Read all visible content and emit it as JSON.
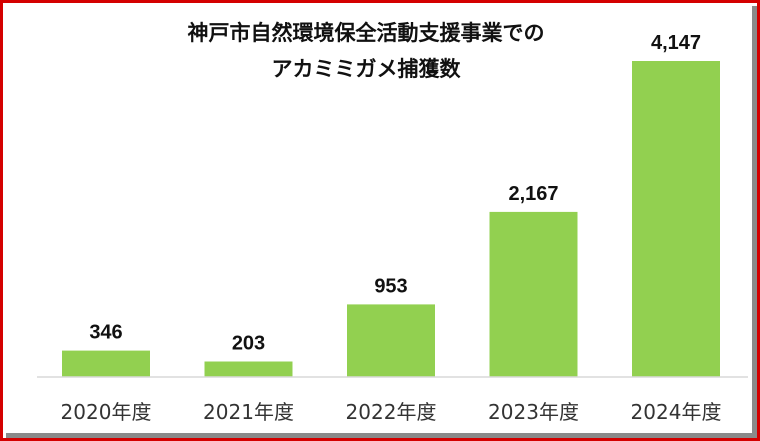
{
  "chart_data": {
    "type": "bar",
    "title_lines": [
      "神戸市自然環境保全活動支援事業での",
      "アカミミガメ捕獲数"
    ],
    "categories": [
      "2020年度",
      "2021年度",
      "2022年度",
      "2023年度",
      "2024年度"
    ],
    "values": [
      346,
      203,
      953,
      2167,
      4147
    ],
    "value_labels": [
      "346",
      "203",
      "953",
      "2,167",
      "4,147"
    ],
    "ylim": [
      0,
      4147
    ],
    "grid": false,
    "legend": "none",
    "bar_color": "#92d050",
    "frame_color": "#d40000"
  }
}
